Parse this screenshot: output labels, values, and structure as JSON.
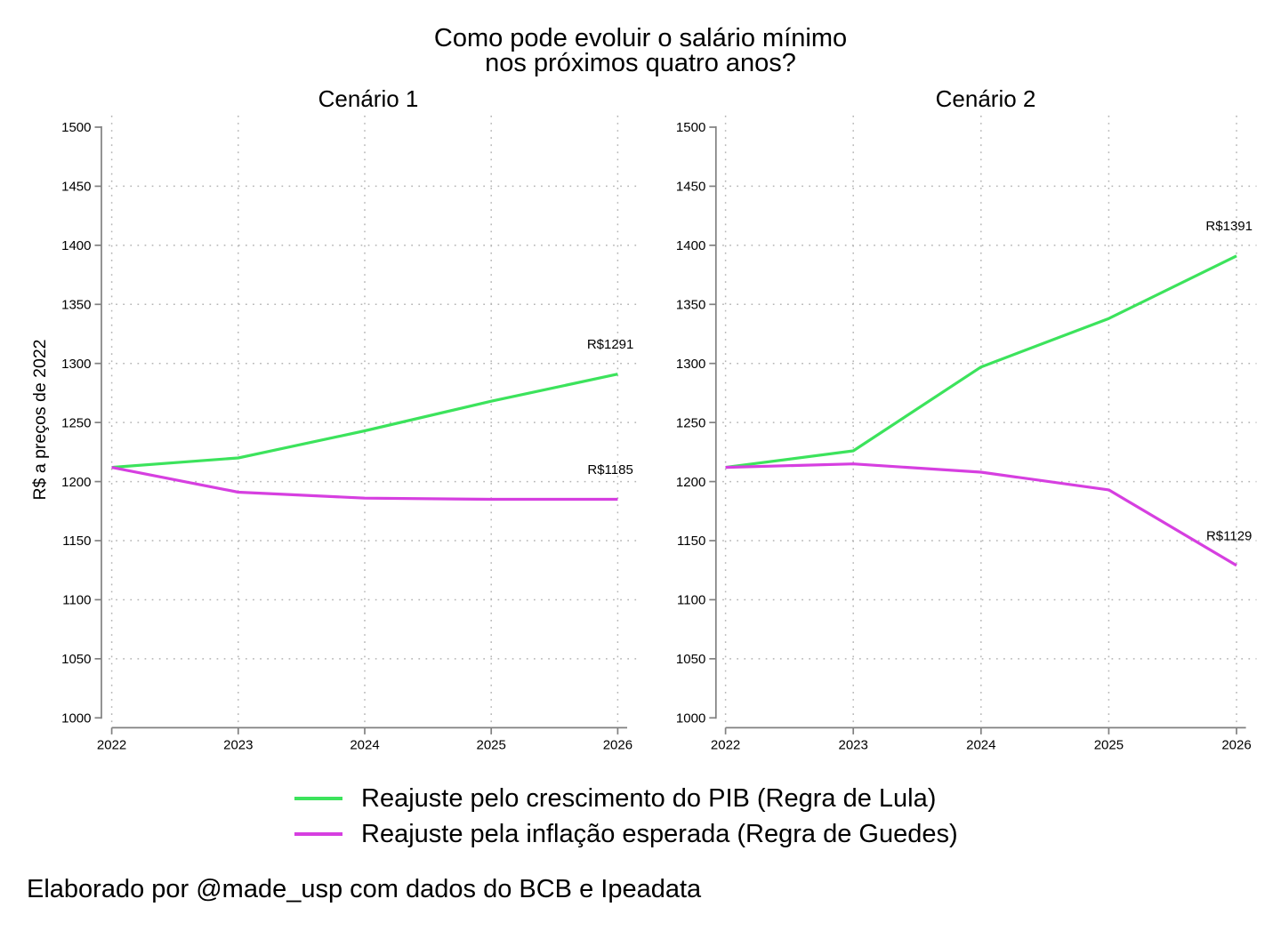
{
  "header": {
    "title_line1": "Como pode evoluir o salário mínimo",
    "title_line2": "nos próximos quatro anos?"
  },
  "caption": "Elaborado por @made_usp com dados do BCB e Ipeadata",
  "legend": {
    "position": "bottom-center",
    "items": [
      {
        "label": "Reajuste pelo crescimento do PIB (Regra de Lula)",
        "color": "#3ce35c"
      },
      {
        "label": "Reajuste pela inflação esperada (Regra de Guedes)",
        "color": "#d63fe0"
      }
    ]
  },
  "colors": {
    "series_pib": "#3ce35c",
    "series_inflacao": "#d63fe0",
    "axis_line": "#808080",
    "gridline": "#b4b4b4",
    "text": "#000000",
    "background": "#ffffff"
  },
  "chart_data": [
    {
      "type": "line",
      "title": "Cenário 1",
      "x": [
        2022,
        2023,
        2024,
        2025,
        2026
      ],
      "xlabel": "",
      "ylabel": "R$ a preços de 2022",
      "ylim": [
        1000,
        1500
      ],
      "ytick_step": 50,
      "grid": "dotted",
      "series": [
        {
          "name": "Reajuste pelo crescimento do PIB (Regra de Lula)",
          "color": "#3ce35c",
          "values": [
            1212,
            1220,
            1243,
            1268,
            1291
          ],
          "end_label": "R$1291"
        },
        {
          "name": "Reajuste pela inflação esperada (Regra de Guedes)",
          "color": "#d63fe0",
          "values": [
            1212,
            1191,
            1186,
            1185,
            1185
          ],
          "end_label": "R$1185"
        }
      ]
    },
    {
      "type": "line",
      "title": "Cenário 2",
      "x": [
        2022,
        2023,
        2024,
        2025,
        2026
      ],
      "xlabel": "",
      "ylabel": "R$ a preços de 2022",
      "ylim": [
        1000,
        1500
      ],
      "ytick_step": 50,
      "grid": "dotted",
      "series": [
        {
          "name": "Reajuste pelo crescimento do PIB (Regra de Lula)",
          "color": "#3ce35c",
          "values": [
            1212,
            1226,
            1297,
            1338,
            1391
          ],
          "end_label": "R$1391"
        },
        {
          "name": "Reajuste pela inflação esperada (Regra de Guedes)",
          "color": "#d63fe0",
          "values": [
            1212,
            1215,
            1208,
            1193,
            1129
          ],
          "end_label": "R$1129"
        }
      ]
    }
  ]
}
